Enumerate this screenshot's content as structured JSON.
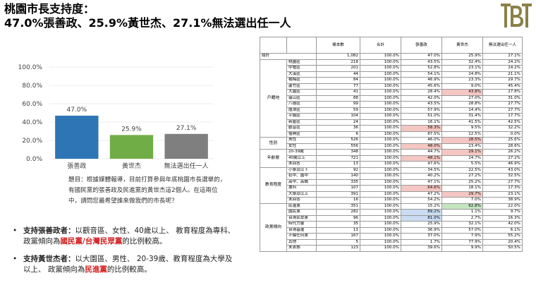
{
  "header": {
    "title_line1": "桃園市長支持度：",
    "title_line2": "47.0%張善政、25.9%黃世杰、27.1%無法選出任一人"
  },
  "logo": {
    "text": "TBT",
    "color": "#8a8048"
  },
  "chart_data": {
    "type": "bar",
    "categories": [
      "張善政",
      "黃世杰",
      "無法選出任一人"
    ],
    "values": [
      47.0,
      25.9,
      27.1
    ],
    "value_labels": [
      "47.0%",
      "25.9%",
      "27.1%"
    ],
    "colors": [
      "#2e75b6",
      "#70ad47",
      "#7f7f7f"
    ],
    "yticks": [
      "100.0%",
      "80.0%",
      "60.0%",
      "40.0%",
      "20.0%",
      "0.0%"
    ],
    "ylim": [
      0,
      100
    ],
    "grid": true,
    "title": "",
    "xlabel": "",
    "ylabel": ""
  },
  "note": "題目：根據媒體報導，目前打算參與年底桃園市長選舉的，有國民黨的張善政及民進黨的黃世杰這2個人。在這兩位中，請問您最希望誰來做我們的市長呢？",
  "bullets": [
    {
      "bold": "支持張善政者：",
      "text1": "以觀音區、女性、40歲以上、 教育程度為專科、政黨傾向為",
      "red": "國民黨/台灣民眾黨",
      "text2": "的比例較高。"
    },
    {
      "bold": "支持黃世杰者：",
      "text1": "以大園區、男性、 20-39歲、教育程度為大學及以上、 政黨傾向為",
      "red": "民進黨",
      "text2": "的比例較高。"
    }
  ],
  "crosstab": {
    "headers": [
      "樣本數",
      "合計",
      "張善政",
      "黃世杰",
      "無法選出任一人"
    ],
    "total": {
      "label": "總計",
      "values": [
        "1,082",
        "100.0%",
        "47.0%",
        "25.9%",
        "27.1%"
      ]
    },
    "groups": [
      {
        "name": "戶籍地",
        "rows": [
          {
            "label": "桃園區",
            "values": [
              "218",
              "100.0%",
              "43.5%",
              "32.4%",
              "24.2%"
            ],
            "hl": ""
          },
          {
            "label": "中壢區",
            "values": [
              "201",
              "100.0%",
              "52.8%",
              "23.1%",
              "24.2%"
            ],
            "hl": ""
          },
          {
            "label": "大溪區",
            "values": [
              "44",
              "100.0%",
              "54.1%",
              "24.8%",
              "21.1%"
            ],
            "hl": ""
          },
          {
            "label": "楊梅區",
            "values": [
              "84",
              "100.0%",
              "46.9%",
              "23.3%",
              "29.7%"
            ],
            "hl": ""
          },
          {
            "label": "蘆竹區",
            "values": [
              "77",
              "100.0%",
              "45.6%",
              "9.0%",
              "45.4%"
            ],
            "hl": ""
          },
          {
            "label": "大園區",
            "values": [
              "41",
              "100.0%",
              "28.4%",
              "43.8%",
              "27.8%"
            ],
            "hl": "3"
          },
          {
            "label": "龜山區",
            "values": [
              "88",
              "100.0%",
              "42.0%",
              "27.0%",
              "31.0%"
            ],
            "hl": ""
          },
          {
            "label": "八德區",
            "values": [
              "99",
              "100.0%",
              "43.5%",
              "28.8%",
              "27.7%"
            ],
            "hl": ""
          },
          {
            "label": "龍潭區",
            "values": [
              "59",
              "100.0%",
              "57.9%",
              "14.4%",
              "27.7%"
            ],
            "hl": ""
          },
          {
            "label": "平鎮區",
            "values": [
              "104",
              "100.0%",
              "51.0%",
              "31.4%",
              "17.7%"
            ],
            "hl": ""
          },
          {
            "label": "新屋區",
            "values": [
              "24",
              "100.0%",
              "16.1%",
              "41.5%",
              "42.5%"
            ],
            "hl": ""
          },
          {
            "label": "觀音區",
            "values": [
              "36",
              "100.0%",
              "58.3%",
              "9.5%",
              "32.2%"
            ],
            "hl": "2"
          },
          {
            "label": "復興區",
            "values": [
              "6",
              "100.0%",
              "87.5%",
              "12.5%",
              "0.0%"
            ],
            "hl": ""
          }
        ]
      },
      {
        "name": "性別",
        "rows": [
          {
            "label": "男性",
            "values": [
              "526",
              "100.0%",
              "46.0%",
              "28.5%",
              "25.6%"
            ],
            "hl": "3"
          },
          {
            "label": "女性",
            "values": [
              "556",
              "100.0%",
              "48.0%",
              "23.4%",
              "28.6%"
            ],
            "hl": "2"
          }
        ]
      },
      {
        "name": "年齡層",
        "rows": [
          {
            "label": "20-39歲",
            "values": [
              "348",
              "100.0%",
              "44.7%",
              "29.1%",
              "26.2%"
            ],
            "hl": "3"
          },
          {
            "label": "40歲以上",
            "values": [
              "721",
              "100.0%",
              "48.1%",
              "24.7%",
              "27.2%"
            ],
            "hl": "2"
          },
          {
            "label": "未回答",
            "values": [
              "13",
              "100.0%",
              "47.6%",
              "5.5%",
              "46.9%"
            ],
            "hl": ""
          }
        ]
      },
      {
        "name": "教育程度",
        "rows": [
          {
            "label": "小學及以下",
            "values": [
              "92",
              "100.0%",
              "34.5%",
              "22.5%",
              "43.0%"
            ],
            "hl": ""
          },
          {
            "label": "初中、國中",
            "values": [
              "140",
              "100.0%",
              "40.2%",
              "27.2%",
              "32.5%"
            ],
            "hl": ""
          },
          {
            "label": "高中、高職",
            "values": [
              "335",
              "100.0%",
              "47.1%",
              "25.2%",
              "27.7%"
            ],
            "hl": ""
          },
          {
            "label": "專科",
            "values": [
              "107",
              "100.0%",
              "64.6%",
              "18.1%",
              "17.3%"
            ],
            "hl": "2"
          },
          {
            "label": "大學及以上",
            "values": [
              "391",
              "100.0%",
              "47.2%",
              "29.7%",
              "23.1%"
            ],
            "hl": "3"
          },
          {
            "label": "未回答",
            "values": [
              "16",
              "100.0%",
              "54.2%",
              "7.0%",
              "38.9%"
            ],
            "hl": ""
          }
        ]
      },
      {
        "name": "政黨傾向",
        "rows": [
          {
            "label": "民進黨",
            "values": [
              "351",
              "100.0%",
              "15.2%",
              "62.8%",
              "22.0%"
            ],
            "hl": "3g"
          },
          {
            "label": "國民黨",
            "values": [
              "282",
              "100.0%",
              "89.2%",
              "1.1%",
              "9.7%"
            ],
            "hl": "2b"
          },
          {
            "label": "台灣民眾黨",
            "values": [
              "96",
              "100.0%",
              "81.0%",
              "2.7%",
              "16.3%"
            ],
            "hl": "2b"
          },
          {
            "label": "時代力量",
            "values": [
              "35",
              "100.0%",
              "25.9%",
              "32.1%",
              "42.0%"
            ],
            "hl": ""
          },
          {
            "label": "台灣基進",
            "values": [
              "13",
              "100.0%",
              "36.9%",
              "57.0%",
              "6.1%"
            ],
            "hl": ""
          },
          {
            "label": "不偏任何黨",
            "values": [
              "167",
              "100.0%",
              "37.0%",
              "7.9%",
              "55.2%"
            ],
            "hl": ""
          },
          {
            "label": "其他",
            "values": [
              "5",
              "100.0%",
              "1.7%",
              "77.9%",
              "20.4%"
            ],
            "hl": ""
          },
          {
            "label": "未表態",
            "values": [
              "123",
              "100.0%",
              "39.6%",
              "9.9%",
              "50.5%"
            ],
            "hl": ""
          }
        ]
      }
    ]
  }
}
